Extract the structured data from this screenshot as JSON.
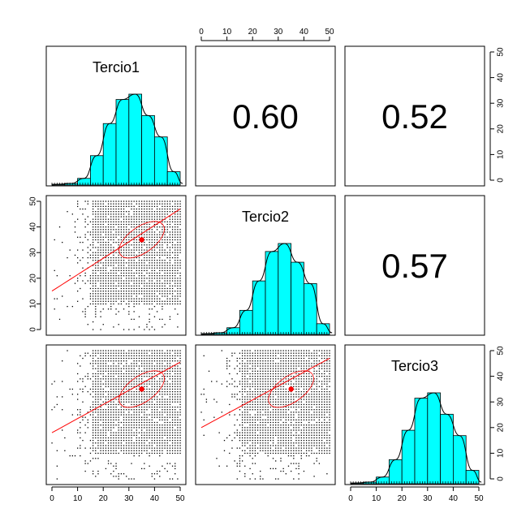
{
  "chart_data": {
    "type": "scatter-matrix",
    "variables": [
      "Tercio1",
      "Tercio2",
      "Tercio3"
    ],
    "axis_range": [
      0,
      50
    ],
    "ticks": [
      0,
      10,
      20,
      30,
      40,
      50
    ],
    "tick_labels": [
      "0",
      "10",
      "20",
      "30",
      "40",
      "50"
    ],
    "correlations": [
      {
        "row": 0,
        "col": 1,
        "label": "0.60"
      },
      {
        "row": 0,
        "col": 2,
        "label": "0.52"
      },
      {
        "row": 1,
        "col": 2,
        "label": "0.57"
      }
    ],
    "histogram": {
      "bin_edges": [
        0,
        5,
        10,
        15,
        20,
        25,
        30,
        35,
        40,
        45,
        50
      ],
      "bar_color": "#00ffff",
      "counts": {
        "Tercio1": [
          0.3,
          0.6,
          2.5,
          11,
          23,
          32,
          34,
          26,
          18,
          5
        ],
        "Tercio2": [
          0.3,
          0.6,
          2.5,
          9,
          20,
          31,
          34,
          27,
          19,
          4
        ],
        "Tercio3": [
          0.3,
          0.6,
          2.5,
          9,
          20,
          32,
          34,
          26,
          18,
          5
        ]
      }
    },
    "scatter": {
      "point_color": "#000000",
      "fit_color": "#ff0000",
      "fit_intercept": [
        15,
        18,
        20
      ],
      "fit_slope": [
        0.64,
        0.55,
        0.54
      ],
      "centroid": [
        35,
        35
      ]
    }
  }
}
